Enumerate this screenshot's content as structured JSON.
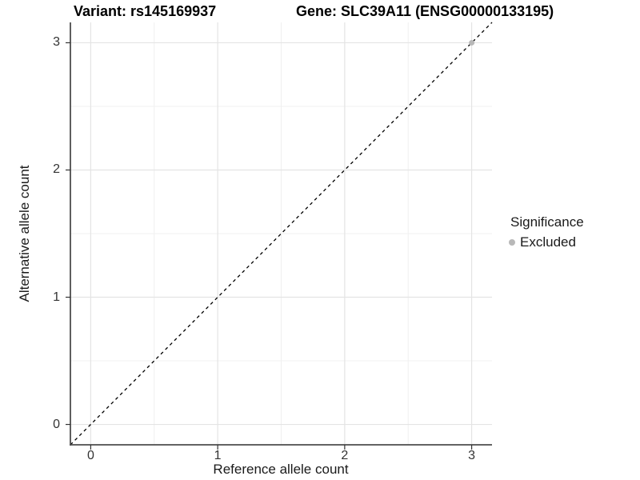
{
  "header": {
    "variant_title": "Variant: rs145169937",
    "gene_title": "Gene: SLC39A11 (ENSG00000133195)"
  },
  "axes": {
    "x": {
      "label": "Reference allele count",
      "ticks": [
        0,
        1,
        2,
        3
      ],
      "tick_labels": [
        "0",
        "1",
        "2",
        "3"
      ]
    },
    "y": {
      "label": "Alternative allele count",
      "ticks": [
        0,
        1,
        2,
        3
      ],
      "tick_labels": [
        "0",
        "1",
        "2",
        "3"
      ]
    }
  },
  "legend": {
    "title": "Significance",
    "items": [
      {
        "label": "Excluded",
        "color": "#b8b8b8"
      }
    ]
  },
  "chart_data": {
    "type": "scatter",
    "title": "Variant: rs145169937 — Gene: SLC39A11 (ENSG00000133195)",
    "xlabel": "Reference allele count",
    "ylabel": "Alternative allele count",
    "xlim": [
      -0.16,
      3.16
    ],
    "ylim": [
      -0.16,
      3.16
    ],
    "grid": {
      "major": [
        0,
        1,
        2,
        3
      ],
      "minor": [
        0.5,
        1.5,
        2.5
      ],
      "on": true
    },
    "series": [
      {
        "name": "Excluded",
        "color": "#b8b8b8",
        "point_radius": 3.5,
        "points": [
          [
            3,
            3
          ]
        ]
      }
    ],
    "reference_line": {
      "type": "identity y=x",
      "style": "dashed",
      "color": "#000000"
    },
    "legend_position": "right"
  },
  "colors": {
    "background": "#ffffff",
    "grid_major": "#e4e4e4",
    "grid_minor": "#f0f0f0",
    "axis_line": "#4d4d4d",
    "tick_mark": "#333333",
    "tick_text": "#333333",
    "text": "#1a1a1a",
    "title_text": "#000000",
    "reference_line": "#000000",
    "point": "#b8b8b8"
  }
}
